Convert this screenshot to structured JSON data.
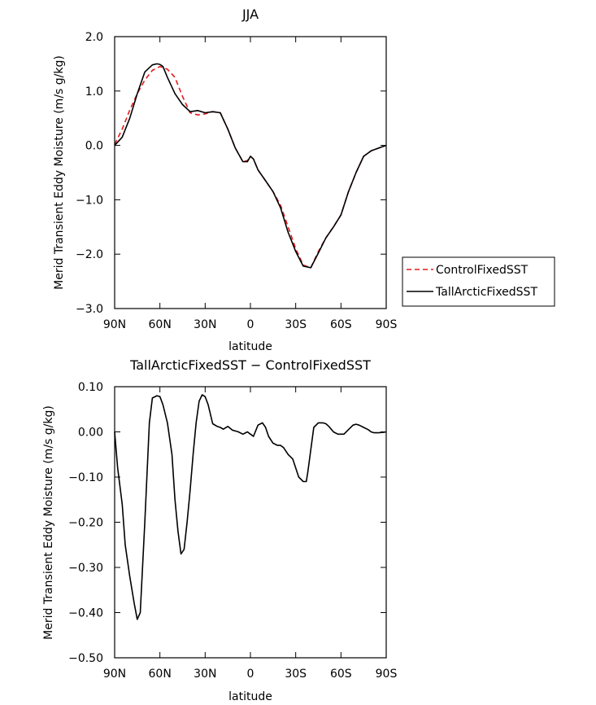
{
  "chart_data": [
    {
      "type": "line",
      "title": "JJA",
      "xlabel": "latitude",
      "ylabel": "Merid Transient Eddy Moisture (m/s g/kg)",
      "xlim": [
        90,
        -90
      ],
      "ylim": [
        -3.0,
        2.0
      ],
      "x_ticks": [
        90,
        60,
        30,
        0,
        -30,
        -60,
        -90
      ],
      "x_tick_labels": [
        "90N",
        "60N",
        "30N",
        "0",
        "30S",
        "60S",
        "90S"
      ],
      "y_ticks": [
        2.0,
        1.0,
        0.0,
        -1.0,
        -2.0,
        -3.0
      ],
      "y_tick_labels": [
        "2.0",
        "1.0",
        "0.0",
        "−1.0",
        "−2.0",
        "−3.0"
      ],
      "legend": {
        "placement": "right"
      },
      "series": [
        {
          "name": "ControlFixedSST",
          "color": "#e41a1c",
          "dash": "dashed",
          "x": [
            90,
            85,
            80,
            75,
            70,
            65,
            60,
            55,
            50,
            45,
            40,
            35,
            30,
            25,
            20,
            15,
            10,
            5,
            2,
            0,
            -2,
            -5,
            -10,
            -15,
            -20,
            -25,
            -30,
            -35,
            -40,
            -45,
            -50,
            -55,
            -60,
            -65,
            -70,
            -75,
            -80,
            -85,
            -90
          ],
          "y": [
            0.02,
            0.3,
            0.65,
            0.95,
            1.2,
            1.38,
            1.45,
            1.4,
            1.25,
            0.9,
            0.6,
            0.56,
            0.58,
            0.62,
            0.6,
            0.3,
            -0.05,
            -0.3,
            -0.28,
            -0.2,
            -0.25,
            -0.45,
            -0.65,
            -0.85,
            -1.1,
            -1.5,
            -1.9,
            -2.2,
            -2.25,
            -1.95,
            -1.7,
            -1.5,
            -1.28,
            -0.85,
            -0.5,
            -0.2,
            -0.1,
            -0.05,
            0.0
          ]
        },
        {
          "name": "TallArcticFixedSST",
          "color": "#000000",
          "dash": "solid",
          "x": [
            90,
            85,
            80,
            75,
            70,
            65,
            62,
            60,
            58,
            55,
            50,
            45,
            40,
            35,
            30,
            25,
            20,
            15,
            10,
            5,
            2,
            0,
            -2,
            -5,
            -10,
            -15,
            -20,
            -25,
            -30,
            -35,
            -40,
            -45,
            -50,
            -55,
            -60,
            -65,
            -70,
            -75,
            -80,
            -85,
            -90
          ],
          "y": [
            0.0,
            0.15,
            0.5,
            0.95,
            1.35,
            1.48,
            1.5,
            1.49,
            1.45,
            1.25,
            0.95,
            0.75,
            0.62,
            0.64,
            0.6,
            0.62,
            0.6,
            0.3,
            -0.05,
            -0.3,
            -0.3,
            -0.2,
            -0.25,
            -0.45,
            -0.65,
            -0.85,
            -1.15,
            -1.6,
            -1.95,
            -2.22,
            -2.25,
            -1.98,
            -1.7,
            -1.5,
            -1.28,
            -0.85,
            -0.5,
            -0.2,
            -0.1,
            -0.05,
            0.0
          ]
        }
      ]
    },
    {
      "type": "line",
      "title": "TallArcticFixedSST − ControlFixedSST",
      "xlabel": "latitude",
      "ylabel": "Merid Transient Eddy Moisture (m/s g/kg)",
      "xlim": [
        90,
        -90
      ],
      "ylim": [
        -0.5,
        0.1
      ],
      "x_ticks": [
        90,
        60,
        30,
        0,
        -30,
        -60,
        -90
      ],
      "x_tick_labels": [
        "90N",
        "60N",
        "30N",
        "0",
        "30S",
        "60S",
        "90S"
      ],
      "y_ticks": [
        0.1,
        0.0,
        -0.1,
        -0.2,
        -0.3,
        -0.4,
        -0.5
      ],
      "y_tick_labels": [
        "0.10",
        "0.00",
        "−0.10",
        "−0.20",
        "−0.30",
        "−0.40",
        "−0.50"
      ],
      "series": [
        {
          "color": "#000000",
          "dash": "solid",
          "x": [
            90,
            88,
            85,
            83,
            80,
            77,
            75,
            73,
            70,
            67,
            65,
            62,
            60,
            58,
            55,
            52,
            50,
            48,
            46,
            44,
            42,
            40,
            38,
            36,
            34,
            32,
            30,
            28,
            25,
            22,
            20,
            18,
            15,
            12,
            10,
            8,
            5,
            2,
            0,
            -2,
            -5,
            -8,
            -10,
            -12,
            -15,
            -18,
            -20,
            -22,
            -25,
            -28,
            -30,
            -32,
            -35,
            -37,
            -38,
            -40,
            -42,
            -45,
            -48,
            -50,
            -52,
            -55,
            -58,
            -60,
            -62,
            -65,
            -68,
            -70,
            -72,
            -75,
            -78,
            -80,
            -82,
            -85,
            -88,
            -90
          ],
          "y": [
            0.0,
            -0.08,
            -0.16,
            -0.25,
            -0.32,
            -0.38,
            -0.415,
            -0.4,
            -0.2,
            0.02,
            0.075,
            0.08,
            0.078,
            0.06,
            0.02,
            -0.05,
            -0.15,
            -0.22,
            -0.27,
            -0.26,
            -0.2,
            -0.13,
            -0.05,
            0.02,
            0.068,
            0.082,
            0.078,
            0.06,
            0.018,
            0.012,
            0.01,
            0.006,
            0.012,
            0.004,
            0.002,
            0.0,
            -0.005,
            0.0,
            -0.005,
            -0.01,
            0.015,
            0.02,
            0.01,
            -0.01,
            -0.025,
            -0.03,
            -0.03,
            -0.035,
            -0.05,
            -0.06,
            -0.08,
            -0.1,
            -0.11,
            -0.11,
            -0.09,
            -0.04,
            0.01,
            0.02,
            0.02,
            0.018,
            0.012,
            0.0,
            -0.005,
            -0.005,
            -0.005,
            0.005,
            0.015,
            0.017,
            0.015,
            0.01,
            0.005,
            0.0,
            -0.002,
            -0.002,
            -0.001,
            0.0
          ]
        }
      ]
    }
  ]
}
